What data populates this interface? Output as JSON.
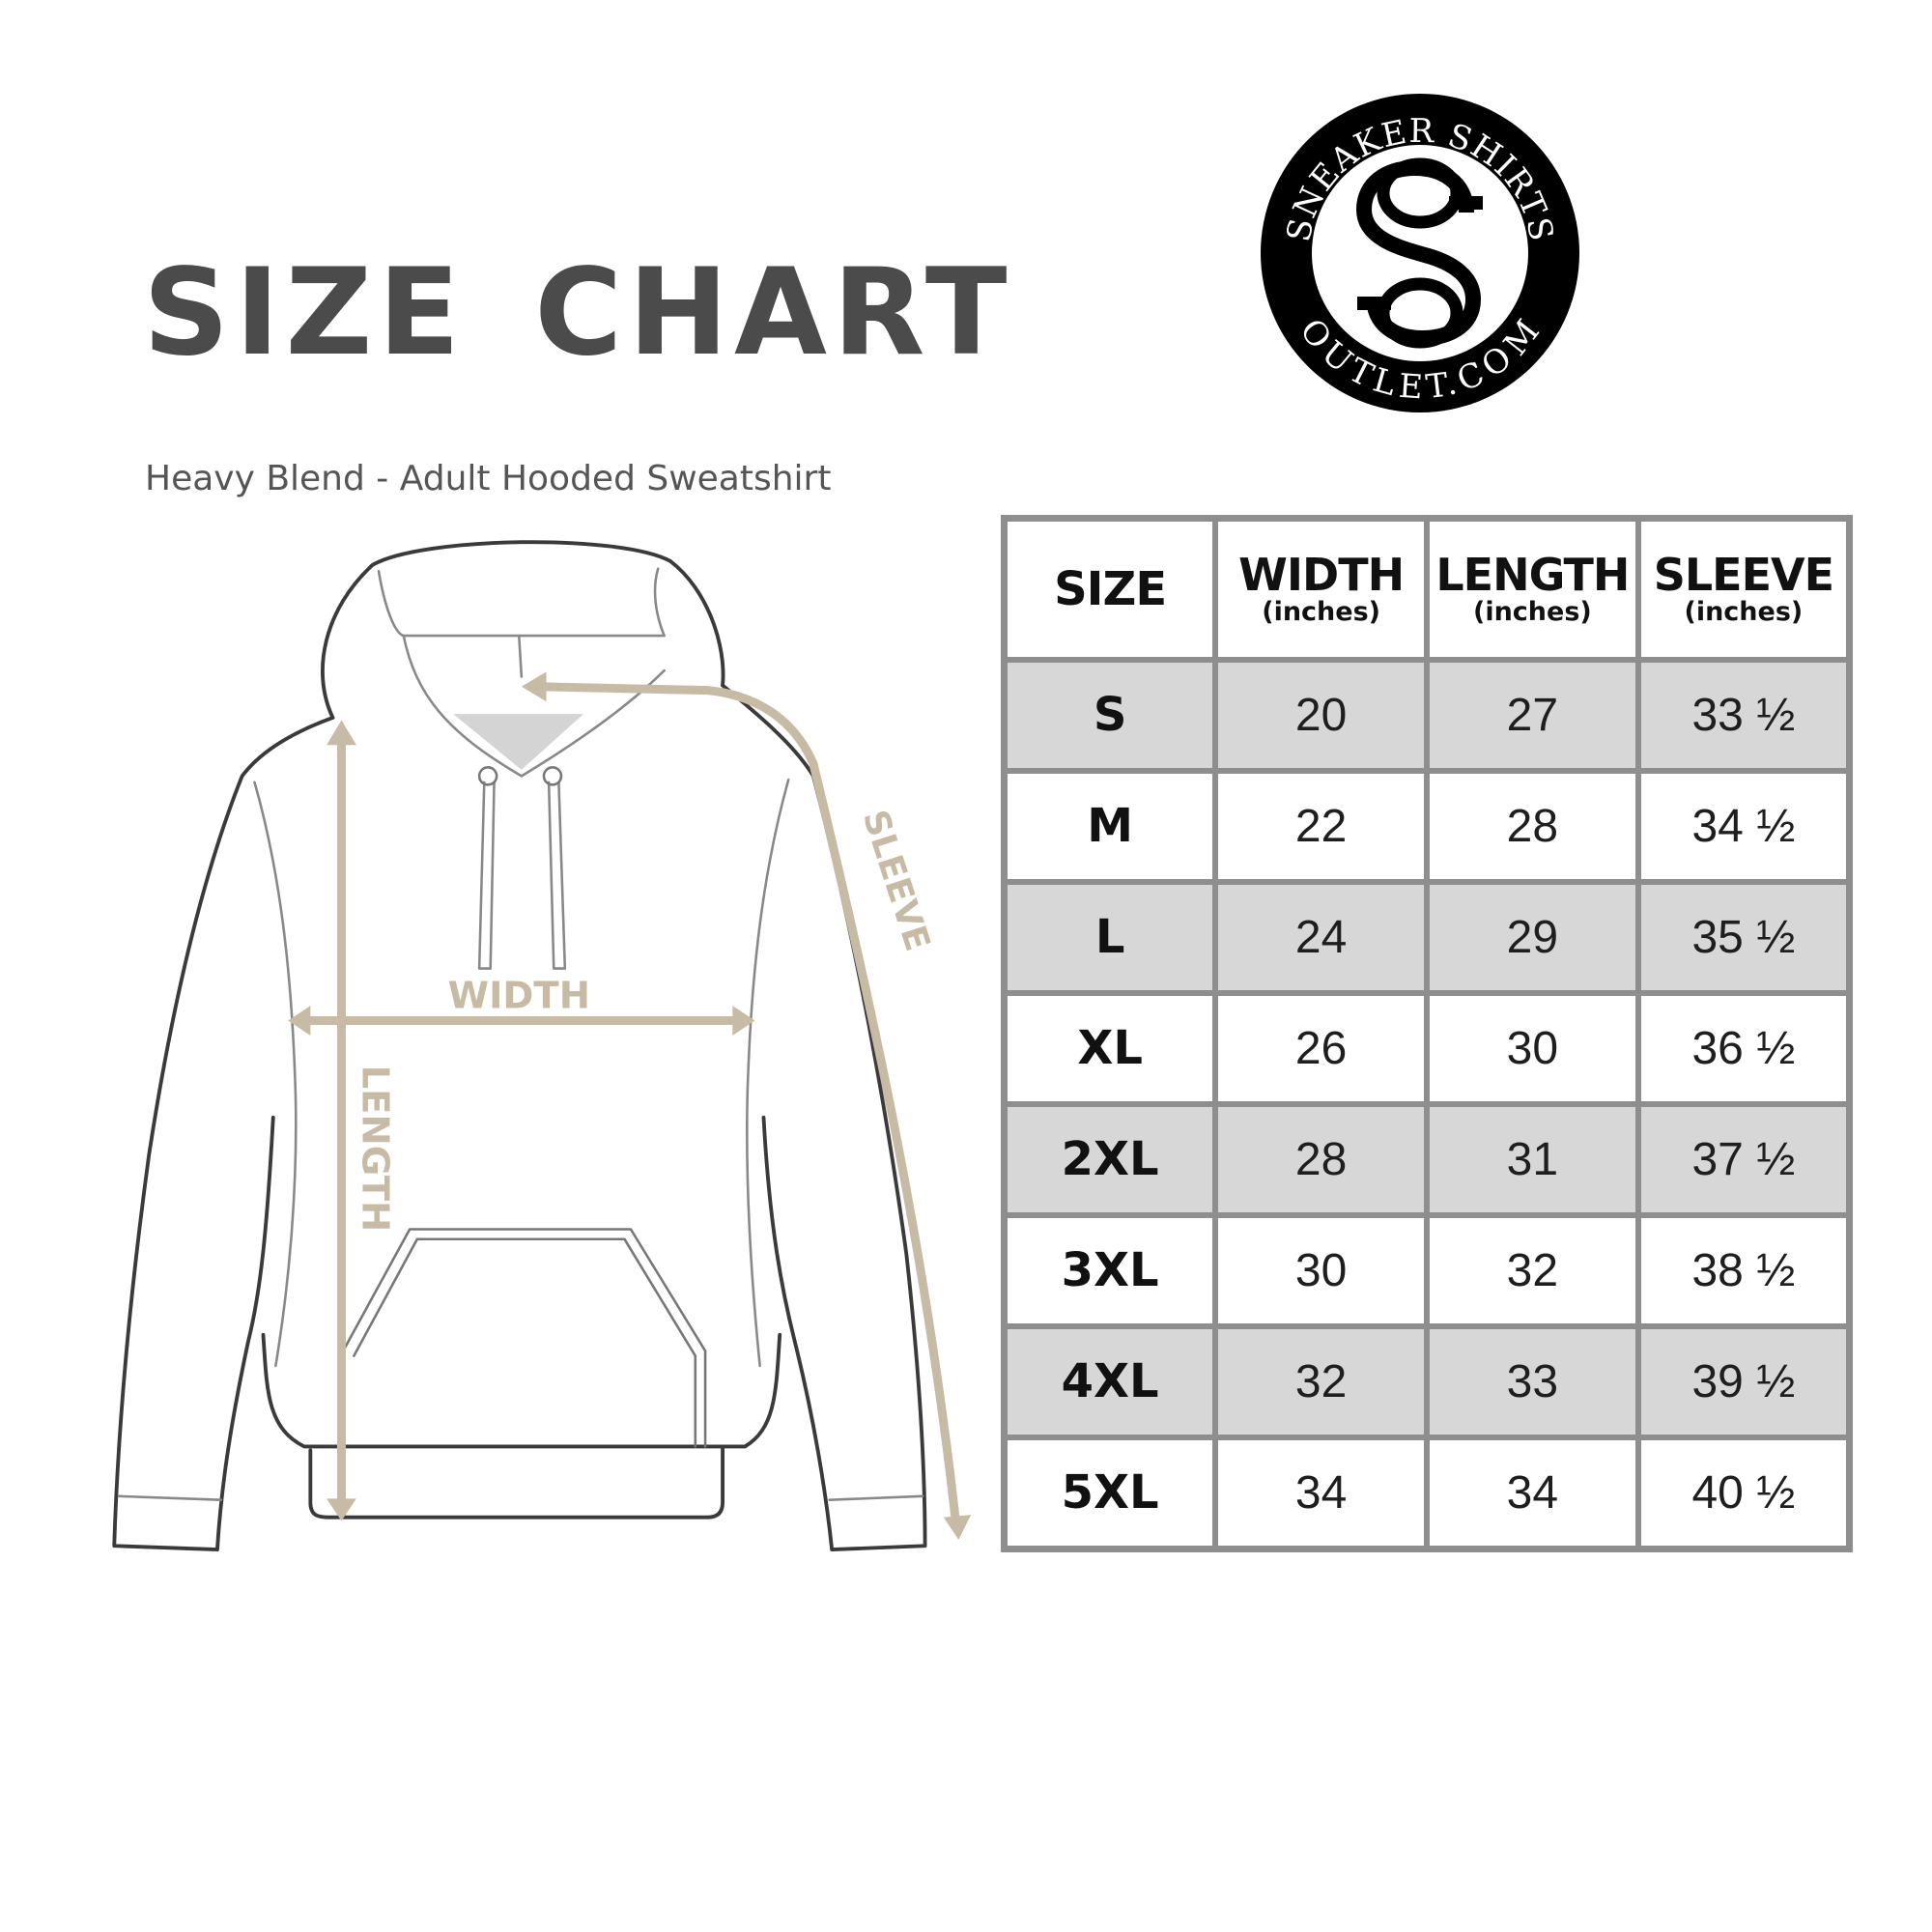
{
  "header": {
    "title": "SIZE CHART",
    "subtitle": "Heavy Blend - Adult Hooded Sweatshirt"
  },
  "logo": {
    "top_text": "SNEAKER SHIRTS",
    "bottom_text": "OUTLET.COM",
    "monogram": "SS"
  },
  "diagram": {
    "labels": {
      "width": "WIDTH",
      "length": "LENGTH",
      "sleeve": "SLEEVE"
    },
    "arrow_color": "#c8bba6",
    "outline_color": "#3a3a3a"
  },
  "table": {
    "columns": [
      {
        "label": "SIZE",
        "unit": ""
      },
      {
        "label": "WIDTH",
        "unit": "(inches)"
      },
      {
        "label": "LENGTH",
        "unit": "(inches)"
      },
      {
        "label": "SLEEVE",
        "unit": "(inches)"
      }
    ],
    "rows": [
      {
        "size": "S",
        "width": "20",
        "length": "27",
        "sleeve": "33 ½"
      },
      {
        "size": "M",
        "width": "22",
        "length": "28",
        "sleeve": "34 ½"
      },
      {
        "size": "L",
        "width": "24",
        "length": "29",
        "sleeve": "35 ½"
      },
      {
        "size": "XL",
        "width": "26",
        "length": "30",
        "sleeve": "36 ½"
      },
      {
        "size": "2XL",
        "width": "28",
        "length": "31",
        "sleeve": "37 ½"
      },
      {
        "size": "3XL",
        "width": "30",
        "length": "32",
        "sleeve": "38 ½"
      },
      {
        "size": "4XL",
        "width": "32",
        "length": "33",
        "sleeve": "39 ½"
      },
      {
        "size": "5XL",
        "width": "34",
        "length": "34",
        "sleeve": "40 ½"
      }
    ],
    "shade_color": "#d7d7d7",
    "border_color": "#8e8e8e"
  }
}
